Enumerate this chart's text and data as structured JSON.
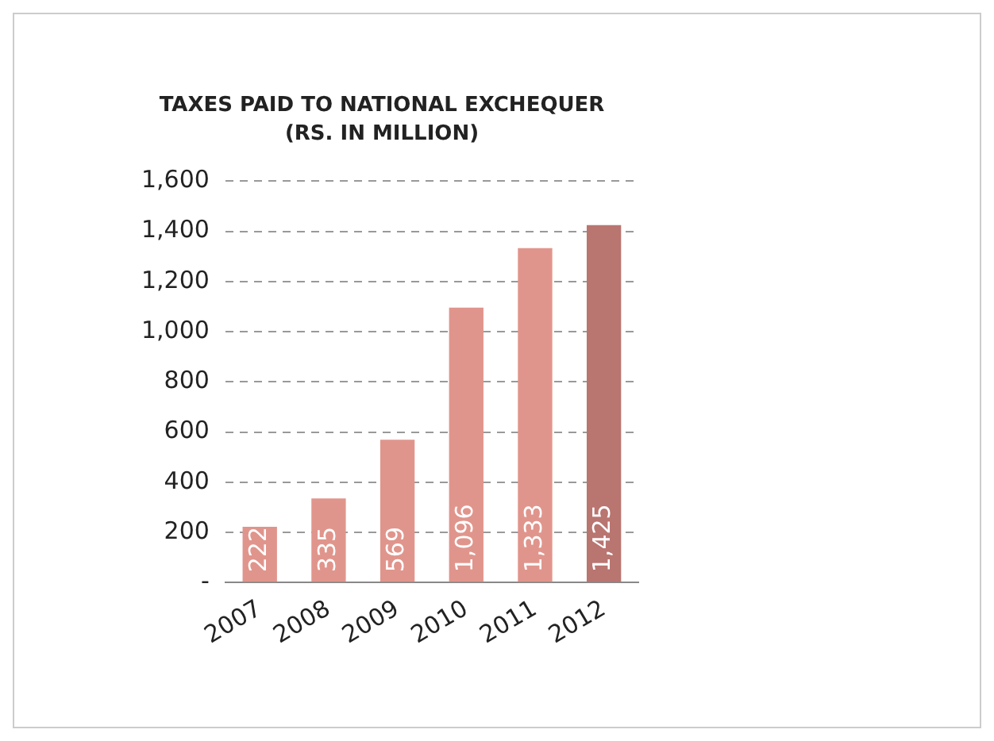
{
  "chart_data": {
    "type": "bar",
    "title": "TAXES PAID TO NATIONAL EXCHEQUER",
    "subtitle": "(RS. IN MILLION)",
    "categories": [
      "2007",
      "2008",
      "2009",
      "2010",
      "2011",
      "2012"
    ],
    "values": [
      222,
      335,
      569,
      1096,
      1333,
      1425
    ],
    "colors": [
      "#e0958c",
      "#e0958c",
      "#e0958c",
      "#e0958c",
      "#e0958c",
      "#b97570"
    ],
    "value_labels": [
      "222",
      "335",
      "569",
      "1,096",
      "1,333",
      "1,425"
    ],
    "ylim": [
      0,
      1600
    ],
    "yticks": [
      {
        "value": 0,
        "label": "-"
      },
      {
        "value": 200,
        "label": "200"
      },
      {
        "value": 400,
        "label": "400"
      },
      {
        "value": 600,
        "label": "600"
      },
      {
        "value": 800,
        "label": "800"
      },
      {
        "value": 1000,
        "label": "1,000"
      },
      {
        "value": 1200,
        "label": "1,200"
      },
      {
        "value": 1400,
        "label": "1,400"
      },
      {
        "value": 1600,
        "label": "1,600"
      }
    ],
    "grid": "y",
    "legend": false
  }
}
